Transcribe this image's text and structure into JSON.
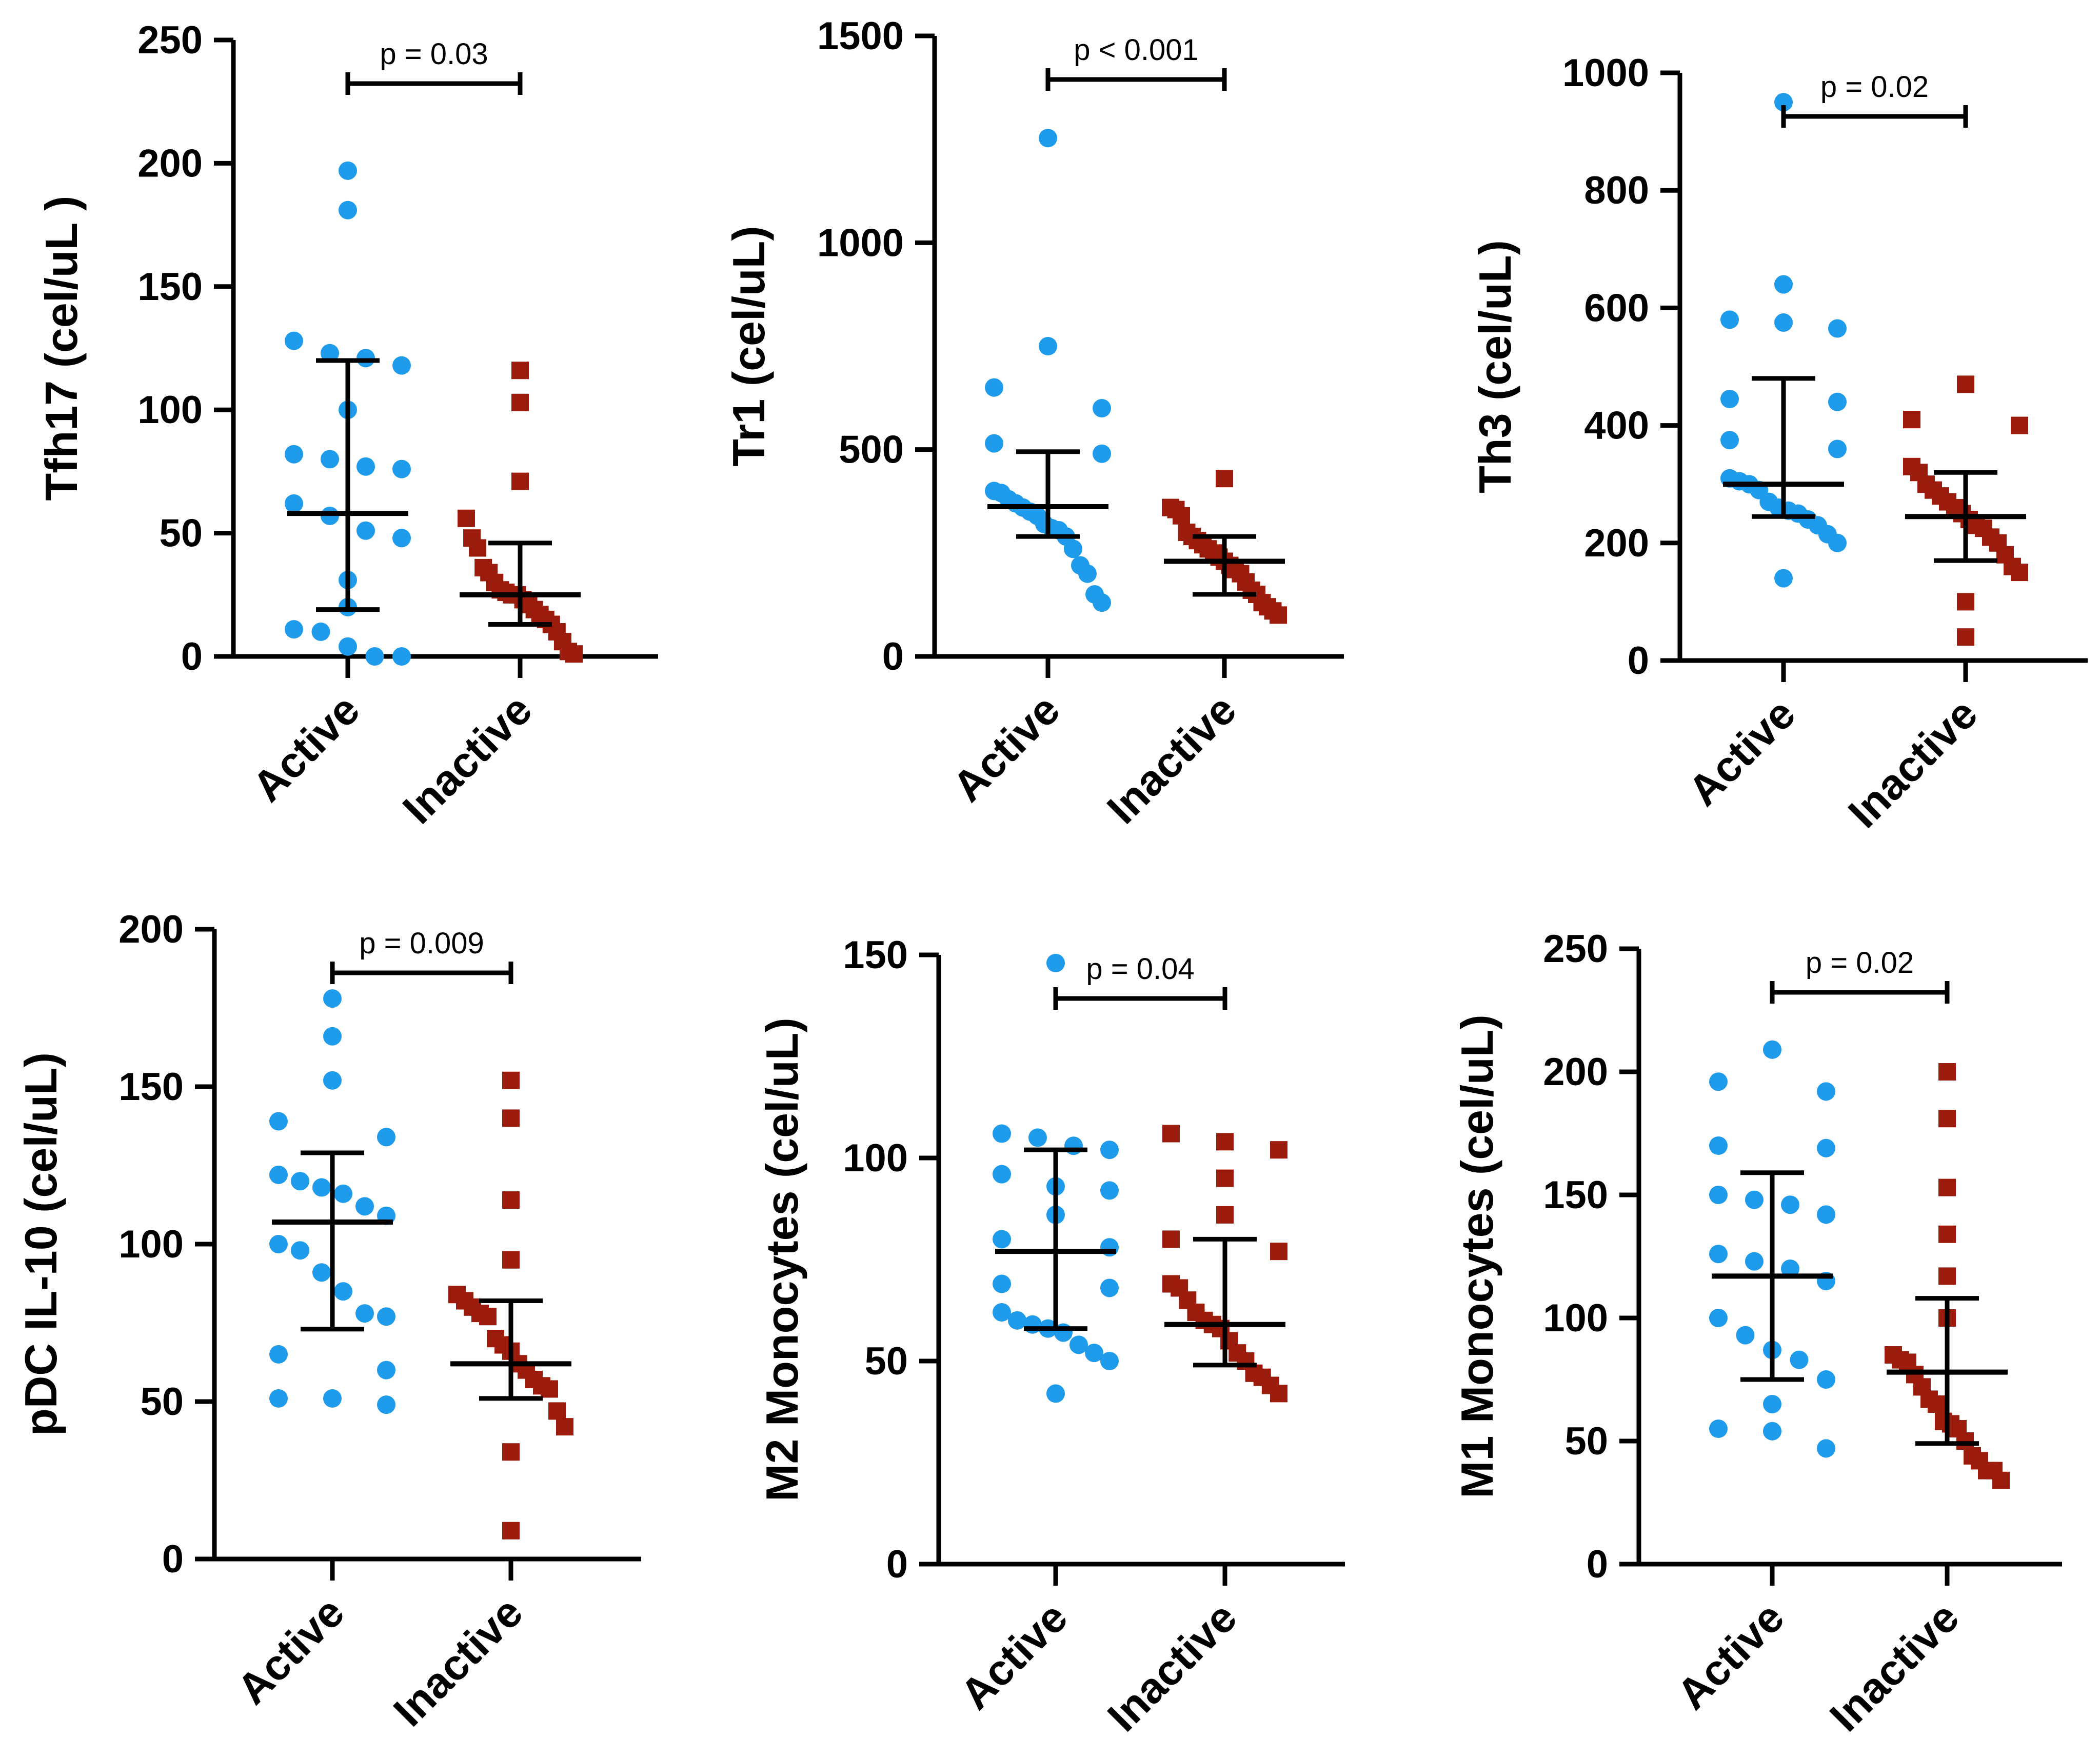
{
  "colors": {
    "active": "#1E9BEA",
    "inactive": "#9B1C0C",
    "axis": "#000000",
    "background": "#FFFFFF"
  },
  "chart_data": [
    {
      "type": "scatter",
      "title": "",
      "ylabel": "Tfh17 (cel/uL )",
      "ylim": [
        0,
        250
      ],
      "yticks": [
        0,
        50,
        100,
        150,
        200,
        250
      ],
      "categories": [
        "Active",
        "Inactive"
      ],
      "annotation": "p = 0.03",
      "series": [
        {
          "name": "Active",
          "marker": "circle",
          "median": 58,
          "q1": 19,
          "q3": 120,
          "values": [
            197,
            181,
            128,
            123,
            121,
            118,
            100,
            82,
            80,
            77,
            76,
            62,
            57,
            51,
            48,
            31,
            20,
            11,
            10,
            4,
            0,
            0
          ]
        },
        {
          "name": "Inactive",
          "marker": "square",
          "median": 25,
          "q1": 13,
          "q3": 46,
          "values": [
            116,
            103,
            71,
            56,
            48,
            44,
            36,
            34,
            30,
            27,
            26,
            25,
            25,
            23,
            21,
            19,
            17,
            15,
            13,
            10,
            6,
            2,
            1
          ]
        }
      ]
    },
    {
      "type": "scatter",
      "title": "",
      "ylabel": "Tr1 (cel/uL)",
      "ylim": [
        0,
        1500
      ],
      "yticks": [
        0,
        500,
        1000,
        1500
      ],
      "categories": [
        "Active",
        "Inactive"
      ],
      "annotation": "p < 0.001",
      "series": [
        {
          "name": "Active",
          "marker": "circle",
          "median": 362,
          "q1": 290,
          "q3": 495,
          "values": [
            1253,
            750,
            650,
            600,
            515,
            490,
            400,
            395,
            380,
            370,
            360,
            350,
            340,
            320,
            310,
            305,
            290,
            260,
            220,
            200,
            150,
            130
          ]
        },
        {
          "name": "Inactive",
          "marker": "square",
          "median": 230,
          "q1": 150,
          "q3": 290,
          "values": [
            430,
            360,
            355,
            340,
            300,
            290,
            280,
            270,
            260,
            250,
            240,
            230,
            220,
            210,
            200,
            180,
            160,
            150,
            130,
            120,
            110,
            100
          ]
        }
      ]
    },
    {
      "type": "scatter",
      "title": "",
      "ylabel": "Th3 (cel/uL)",
      "ylim": [
        0,
        1000
      ],
      "yticks": [
        0,
        200,
        400,
        600,
        800,
        1000
      ],
      "categories": [
        "Active",
        "Inactive"
      ],
      "annotation": "p = 0.02",
      "series": [
        {
          "name": "Active",
          "marker": "circle",
          "median": 300,
          "q1": 245,
          "q3": 480,
          "values": [
            950,
            640,
            580,
            575,
            565,
            445,
            440,
            375,
            360,
            310,
            305,
            300,
            290,
            270,
            260,
            255,
            250,
            240,
            230,
            215,
            200,
            140
          ]
        },
        {
          "name": "Inactive",
          "marker": "square",
          "median": 245,
          "q1": 170,
          "q3": 320,
          "values": [
            470,
            410,
            400,
            330,
            320,
            300,
            290,
            280,
            270,
            260,
            250,
            240,
            230,
            225,
            210,
            200,
            180,
            160,
            150,
            100,
            40
          ]
        }
      ]
    },
    {
      "type": "scatter",
      "title": "",
      "ylabel": "pDC IL-10 (cel/uL)",
      "ylim": [
        0,
        200
      ],
      "yticks": [
        0,
        50,
        100,
        150,
        200
      ],
      "categories": [
        "Active",
        "Inactive"
      ],
      "annotation": "p = 0.009",
      "series": [
        {
          "name": "Active",
          "marker": "circle",
          "median": 107,
          "q1": 73,
          "q3": 129,
          "values": [
            178,
            166,
            152,
            139,
            134,
            122,
            120,
            118,
            116,
            112,
            109,
            100,
            98,
            91,
            85,
            78,
            77,
            65,
            60,
            51,
            51,
            49
          ]
        },
        {
          "name": "Inactive",
          "marker": "square",
          "median": 62,
          "q1": 51,
          "q3": 82,
          "values": [
            152,
            140,
            114,
            95,
            84,
            82,
            80,
            78,
            77,
            70,
            68,
            66,
            62,
            60,
            57,
            55,
            54,
            47,
            42,
            34,
            9
          ]
        }
      ]
    },
    {
      "type": "scatter",
      "title": "",
      "ylabel": "M2 Monocytes (cel/uL)",
      "ylim": [
        0,
        150
      ],
      "yticks": [
        0,
        50,
        100,
        150
      ],
      "categories": [
        "Active",
        "Inactive"
      ],
      "annotation": "p = 0.04",
      "series": [
        {
          "name": "Active",
          "marker": "circle",
          "median": 77,
          "q1": 58,
          "q3": 102,
          "values": [
            148,
            106,
            105,
            103,
            102,
            96,
            93,
            92,
            86,
            80,
            78,
            69,
            68,
            62,
            60,
            59,
            58,
            57,
            54,
            52,
            50,
            42
          ]
        },
        {
          "name": "Inactive",
          "marker": "square",
          "median": 59,
          "q1": 49,
          "q3": 80,
          "values": [
            106,
            104,
            102,
            95,
            86,
            80,
            77,
            69,
            68,
            65,
            62,
            60,
            59,
            58,
            55,
            52,
            50,
            47,
            46,
            44,
            42
          ]
        }
      ]
    },
    {
      "type": "scatter",
      "title": "",
      "ylabel": "M1 Monocytes (cel/uL)",
      "ylim": [
        0,
        250
      ],
      "yticks": [
        0,
        50,
        100,
        150,
        200,
        250
      ],
      "categories": [
        "Active",
        "Inactive"
      ],
      "annotation": "p = 0.02",
      "series": [
        {
          "name": "Active",
          "marker": "circle",
          "median": 117,
          "q1": 75,
          "q3": 159,
          "values": [
            209,
            196,
            192,
            170,
            169,
            150,
            148,
            146,
            142,
            126,
            123,
            120,
            115,
            100,
            93,
            87,
            83,
            75,
            65,
            55,
            54,
            47
          ]
        },
        {
          "name": "Inactive",
          "marker": "square",
          "median": 78,
          "q1": 49,
          "q3": 108,
          "values": [
            200,
            181,
            153,
            134,
            117,
            100,
            85,
            83,
            82,
            77,
            72,
            67,
            65,
            58,
            57,
            55,
            50,
            44,
            42,
            38,
            38,
            34
          ]
        }
      ]
    }
  ]
}
